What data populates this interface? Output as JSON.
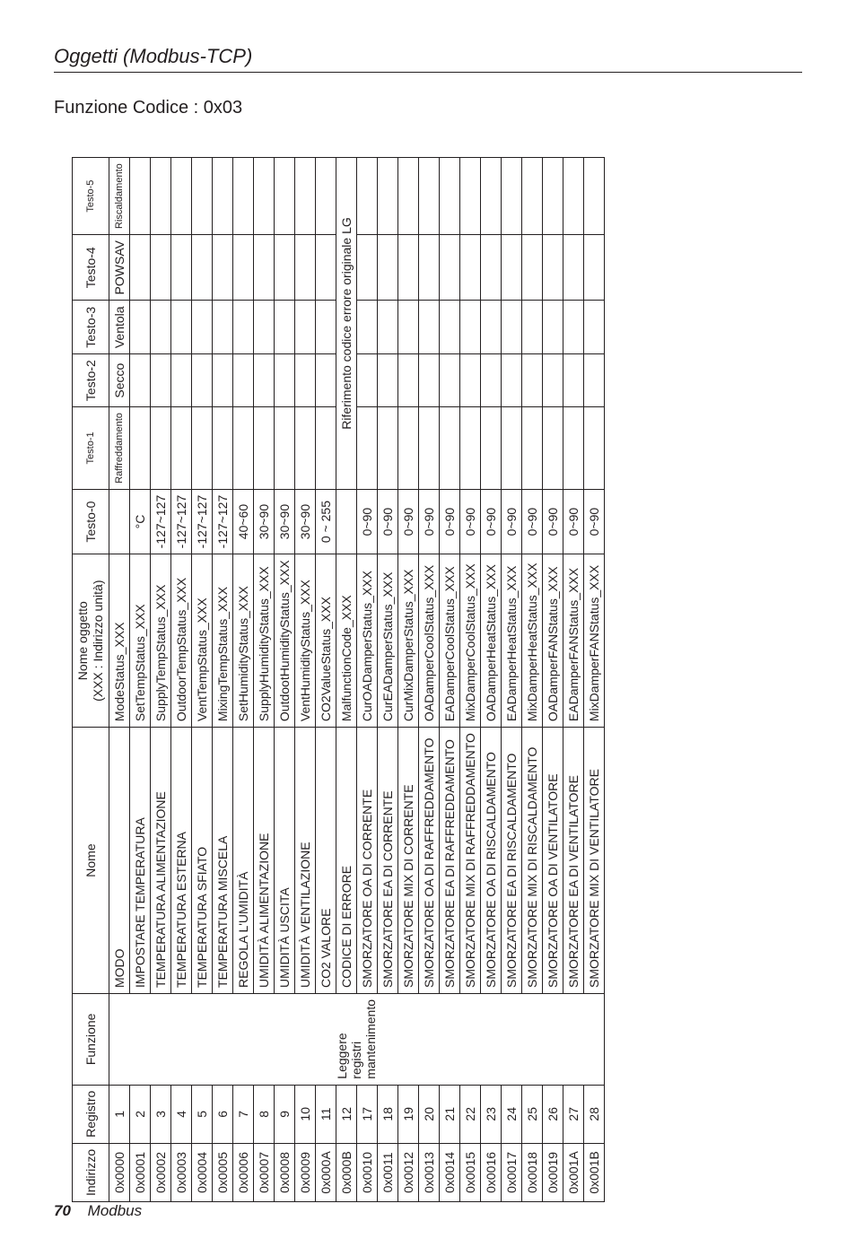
{
  "header": {
    "title": "Oggetti (Modbus-TCP)"
  },
  "section": {
    "title": "Funzione Codice : 0x03"
  },
  "footer": {
    "page": "70",
    "ref": "Modbus"
  },
  "table": {
    "col_widths": {
      "ind": 55,
      "reg": 55,
      "fun": 75,
      "nome": 265,
      "obj": 210,
      "t": 60
    },
    "head": {
      "indirizzo": "Indirizzo",
      "registro": "Registro",
      "funzione": "Funzione",
      "nome": "Nome",
      "oggetto_line1": "Nome oggetto",
      "oggetto_line2": "(XXX : Indirizzo unità)",
      "testo0": "Testo-0",
      "testo1": "Testo-1",
      "testo2": "Testo-2",
      "testo3": "Testo-3",
      "testo4": "Testo-4",
      "testo5": "Testo-5"
    },
    "funzione_merged": "Leggere registri mantenimento",
    "riferimento_merged": "Riferimento codice errore originale LG",
    "rows": [
      {
        "ind": "0x0000",
        "reg": "1",
        "nome": "MODO",
        "obj": "ModeStatus_XXX",
        "t0": "",
        "t1": "Raffreddamento",
        "t2": "Secco",
        "t3": "Ventola",
        "t4": "POWSAV",
        "t5": "Riscaldamento"
      },
      {
        "ind": "0x0001",
        "reg": "2",
        "nome": "IMPOSTARE TEMPERATURA",
        "obj": "SetTempStatus_XXX",
        "t0": "°C",
        "t1": "",
        "t2": "",
        "t3": "",
        "t4": "",
        "t5": ""
      },
      {
        "ind": "0x0002",
        "reg": "3",
        "nome": "TEMPERATURA ALIMENTAZIONE",
        "obj": "SupplyTempStatus_XXX",
        "t0": "-127~127",
        "t1": "",
        "t2": "",
        "t3": "",
        "t4": "",
        "t5": ""
      },
      {
        "ind": "0x0003",
        "reg": "4",
        "nome": "TEMPERATURA ESTERNA",
        "obj": "OutdoorTempStatus_XXX",
        "t0": "-127~127",
        "t1": "",
        "t2": "",
        "t3": "",
        "t4": "",
        "t5": ""
      },
      {
        "ind": "0x0004",
        "reg": "5",
        "nome": "TEMPERATURA SFIATO",
        "obj": "VentTempStatus_XXX",
        "t0": "-127~127",
        "t1": "",
        "t2": "",
        "t3": "",
        "t4": "",
        "t5": ""
      },
      {
        "ind": "0x0005",
        "reg": "6",
        "nome": "TEMPERATURA MISCELA",
        "obj": "MixingTempStatus_XXX",
        "t0": "-127~127",
        "t1": "",
        "t2": "",
        "t3": "",
        "t4": "",
        "t5": ""
      },
      {
        "ind": "0x0006",
        "reg": "7",
        "nome": "REGOLA L'UMIDITÀ",
        "obj": "SetHumidityStatus_XXX",
        "t0": "40~60",
        "t1": "",
        "t2": "",
        "t3": "",
        "t4": "",
        "t5": ""
      },
      {
        "ind": "0x0007",
        "reg": "8",
        "nome": "UMIDITÀ ALIMENTAZIONE",
        "obj": "SupplyHumidityStatus_XXX",
        "t0": "30~90",
        "t1": "",
        "t2": "",
        "t3": "",
        "t4": "",
        "t5": ""
      },
      {
        "ind": "0x0008",
        "reg": "9",
        "nome": "UMIDITÀ USCITA",
        "obj": "OutdootHumidityStatus_XXX",
        "t0": "30~90",
        "t1": "",
        "t2": "",
        "t3": "",
        "t4": "",
        "t5": ""
      },
      {
        "ind": "0x0009",
        "reg": "10",
        "nome": "UMIDITÀ VENTILAZIONE",
        "obj": "VentHumidityStatus_XXX",
        "t0": "30~90",
        "t1": "",
        "t2": "",
        "t3": "",
        "t4": "",
        "t5": ""
      },
      {
        "ind": "0x000A",
        "reg": "11",
        "nome": "CO2 VALORE",
        "obj": "CO2ValueStatus_XXX",
        "t0": "0 ~ 255",
        "t1": "",
        "t2": "",
        "t3": "",
        "t4": "",
        "t5": ""
      },
      {
        "ind": "0x000B",
        "reg": "12",
        "nome": "CODICE DI ERRORE",
        "obj": "MalfunctionCode_XXX",
        "t0": "",
        "t1": "RIF",
        "t2": "",
        "t3": "",
        "t4": "",
        "t5": ""
      },
      {
        "ind": "0x0010",
        "reg": "17",
        "nome": "SMORZATORE OA DI CORRENTE",
        "obj": "CurOADamperStatus_XXX",
        "t0": "0~90",
        "t1": "",
        "t2": "",
        "t3": "",
        "t4": "",
        "t5": ""
      },
      {
        "ind": "0x0011",
        "reg": "18",
        "nome": "SMORZATORE EA DI CORRENTE",
        "obj": "CurEADamperStatus_XXX",
        "t0": "0~90",
        "t1": "",
        "t2": "",
        "t3": "",
        "t4": "",
        "t5": ""
      },
      {
        "ind": "0x0012",
        "reg": "19",
        "nome": "SMORZATORE MIX DI CORRENTE",
        "obj": "CurMixDamperStatus_XXX",
        "t0": "0~90",
        "t1": "",
        "t2": "",
        "t3": "",
        "t4": "",
        "t5": ""
      },
      {
        "ind": "0x0013",
        "reg": "20",
        "nome": "SMORZATORE OA DI RAFFREDDAMENTO",
        "obj": "OADamperCoolStatus_XXX",
        "t0": "0~90",
        "t1": "",
        "t2": "",
        "t3": "",
        "t4": "",
        "t5": ""
      },
      {
        "ind": "0x0014",
        "reg": "21",
        "nome": "SMORZATORE EA DI RAFFREDDAMENTO",
        "obj": "EADamperCoolStatus_XXX",
        "t0": "0~90",
        "t1": "",
        "t2": "",
        "t3": "",
        "t4": "",
        "t5": ""
      },
      {
        "ind": "0x0015",
        "reg": "22",
        "nome": "SMORZATORE MIX DI RAFFREDDAMENTO",
        "obj": "MixDamperCoolStatus_XXX",
        "t0": "0~90",
        "t1": "",
        "t2": "",
        "t3": "",
        "t4": "",
        "t5": ""
      },
      {
        "ind": "0x0016",
        "reg": "23",
        "nome": "SMORZATORE OA DI RISCALDAMENTO",
        "obj": "OADamperHeatStatus_XXX",
        "t0": "0~90",
        "t1": "",
        "t2": "",
        "t3": "",
        "t4": "",
        "t5": ""
      },
      {
        "ind": "0x0017",
        "reg": "24",
        "nome": "SMORZATORE EA DI RISCALDAMENTO",
        "obj": "EADamperHeatStatus_XXX",
        "t0": "0~90",
        "t1": "",
        "t2": "",
        "t3": "",
        "t4": "",
        "t5": ""
      },
      {
        "ind": "0x0018",
        "reg": "25",
        "nome": "SMORZATORE MIX DI RISCALDAMENTO",
        "obj": "MixDamperHeatStatus_XXX",
        "t0": "0~90",
        "t1": "",
        "t2": "",
        "t3": "",
        "t4": "",
        "t5": ""
      },
      {
        "ind": "0x0019",
        "reg": "26",
        "nome": "SMORZATORE OA DI VENTILATORE",
        "obj": "OADamperFANStatus_XXX",
        "t0": "0~90",
        "t1": "",
        "t2": "",
        "t3": "",
        "t4": "",
        "t5": ""
      },
      {
        "ind": "0x001A",
        "reg": "27",
        "nome": "SMORZATORE EA DI VENTILATORE",
        "obj": "EADamperFANStatus_XXX",
        "t0": "0~90",
        "t1": "",
        "t2": "",
        "t3": "",
        "t4": "",
        "t5": ""
      },
      {
        "ind": "0x001B",
        "reg": "28",
        "nome": "SMORZATORE MIX DI VENTILATORE",
        "obj": "MixDamperFANStatus_XXX",
        "t0": "0~90",
        "t1": "",
        "t2": "",
        "t3": "",
        "t4": "",
        "t5": ""
      }
    ]
  }
}
